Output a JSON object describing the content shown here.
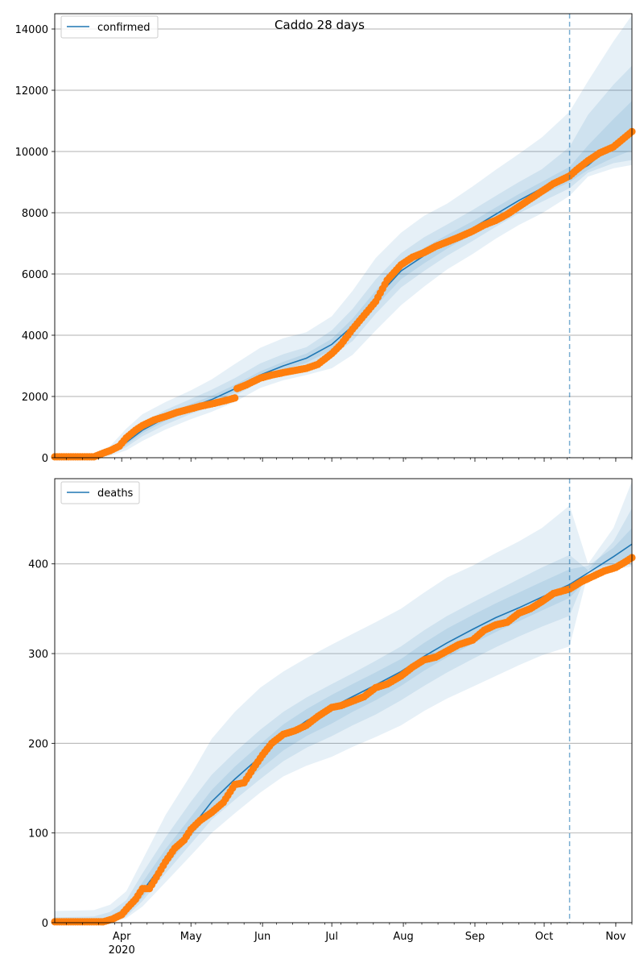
{
  "chart_data": [
    {
      "type": "line",
      "title": "Caddo 28 days",
      "legend": {
        "label": "confirmed",
        "placement": "top-left"
      },
      "grid": "horizontal",
      "ylim": [
        0,
        14500
      ],
      "yticks": [
        0,
        2000,
        4000,
        6000,
        8000,
        10000,
        12000,
        14000
      ],
      "xlim": [
        "2020-03-03",
        "2020-11-08"
      ],
      "forecast_start": "2020-10-12",
      "fit": {
        "x": [
          "2020-03-03",
          "2020-03-20",
          "2020-03-27",
          "2020-04-03",
          "2020-04-10",
          "2020-04-20",
          "2020-05-01",
          "2020-05-10",
          "2020-05-20",
          "2020-05-31",
          "2020-06-10",
          "2020-06-20",
          "2020-07-01",
          "2020-07-10",
          "2020-07-20",
          "2020-07-31",
          "2020-08-10",
          "2020-08-20",
          "2020-08-31",
          "2020-09-10",
          "2020-09-20",
          "2020-09-30",
          "2020-10-12",
          "2020-10-20",
          "2020-10-31",
          "2020-11-08"
        ],
        "y": [
          0,
          20,
          150,
          500,
          900,
          1300,
          1650,
          1900,
          2250,
          2700,
          3000,
          3250,
          3700,
          4300,
          5200,
          6100,
          6600,
          7050,
          7500,
          7950,
          8400,
          8800,
          9200,
          9550,
          10250,
          10750
        ]
      },
      "bands": [
        {
          "level": "outer",
          "lower": [
            0,
            0,
            60,
            240,
            550,
            920,
            1260,
            1500,
            1820,
            2280,
            2530,
            2700,
            2920,
            3360,
            4150,
            4980,
            5590,
            6150,
            6650,
            7150,
            7600,
            7980,
            8550,
            9180,
            9450,
            9560
          ],
          "upper": [
            0,
            150,
            380,
            950,
            1420,
            1820,
            2200,
            2560,
            3060,
            3590,
            3900,
            4100,
            4620,
            5450,
            6520,
            7350,
            7900,
            8300,
            8860,
            9400,
            9920,
            10460,
            11300,
            12300,
            13600,
            14450
          ]
        },
        {
          "level": "middle",
          "lower": [
            0,
            0,
            100,
            350,
            700,
            1080,
            1430,
            1680,
            2020,
            2480,
            2760,
            2960,
            3330,
            3810,
            4700,
            5560,
            6100,
            6600,
            7080,
            7540,
            7980,
            8360,
            8800,
            9310,
            9620,
            9720
          ],
          "upper": [
            0,
            80,
            250,
            700,
            1150,
            1560,
            1920,
            2220,
            2600,
            3080,
            3380,
            3610,
            4160,
            4860,
            5820,
            6680,
            7200,
            7620,
            8090,
            8550,
            9000,
            9420,
            10150,
            11200,
            12180,
            12800
          ]
        },
        {
          "level": "inner",
          "lower": [
            0,
            0,
            120,
            420,
            800,
            1200,
            1550,
            1790,
            2140,
            2590,
            2880,
            3100,
            3520,
            4060,
            4950,
            5830,
            6350,
            6830,
            7300,
            7750,
            8200,
            8580,
            9000,
            9400,
            9800,
            10040
          ],
          "upper": [
            0,
            40,
            190,
            600,
            1020,
            1420,
            1760,
            2020,
            2380,
            2820,
            3130,
            3400,
            3880,
            4540,
            5450,
            6370,
            6860,
            7280,
            7720,
            8170,
            8610,
            9010,
            9500,
            10200,
            11060,
            11650
          ]
        }
      ],
      "observed": {
        "x": [
          "2020-03-03",
          "2020-03-20",
          "2020-03-24",
          "2020-03-27",
          "2020-03-31",
          "2020-04-03",
          "2020-04-07",
          "2020-04-10",
          "2020-04-15",
          "2020-04-20",
          "2020-04-25",
          "2020-05-01",
          "2020-05-05",
          "2020-05-10",
          "2020-05-15",
          "2020-05-20",
          "2020-05-21",
          "2020-05-25",
          "2020-05-31",
          "2020-06-05",
          "2020-06-10",
          "2020-06-15",
          "2020-06-20",
          "2020-06-25",
          "2020-07-01",
          "2020-07-05",
          "2020-07-10",
          "2020-07-15",
          "2020-07-20",
          "2020-07-25",
          "2020-07-31",
          "2020-08-05",
          "2020-08-10",
          "2020-08-15",
          "2020-08-20",
          "2020-08-25",
          "2020-08-31",
          "2020-09-05",
          "2020-09-10",
          "2020-09-15",
          "2020-09-20",
          "2020-09-25",
          "2020-09-30",
          "2020-10-05",
          "2020-10-12",
          "2020-10-15",
          "2020-10-20",
          "2020-10-25",
          "2020-10-31",
          "2020-11-04",
          "2020-11-08"
        ],
        "y": [
          30,
          30,
          150,
          230,
          380,
          650,
          900,
          1050,
          1230,
          1350,
          1480,
          1600,
          1680,
          1760,
          1850,
          1950,
          2260,
          2380,
          2600,
          2700,
          2780,
          2850,
          2920,
          3050,
          3400,
          3700,
          4200,
          4650,
          5100,
          5800,
          6300,
          6550,
          6700,
          6900,
          7050,
          7200,
          7400,
          7600,
          7750,
          7950,
          8200,
          8450,
          8700,
          8950,
          9200,
          9400,
          9700,
          9950,
          10150,
          10400,
          10650
        ]
      }
    },
    {
      "type": "line",
      "legend": {
        "label": "deaths",
        "placement": "top-left"
      },
      "grid": "horizontal",
      "ylim": [
        0,
        495
      ],
      "yticks": [
        0,
        100,
        200,
        300,
        400
      ],
      "xlim": [
        "2020-03-03",
        "2020-11-08"
      ],
      "forecast_start": "2020-10-12",
      "xticks": [
        "Apr",
        "May",
        "Jun",
        "Jul",
        "Aug",
        "Sep",
        "Oct",
        "Nov"
      ],
      "xtick_sub": "2020",
      "fit": {
        "x": [
          "2020-03-03",
          "2020-03-20",
          "2020-03-27",
          "2020-04-03",
          "2020-04-10",
          "2020-04-20",
          "2020-05-01",
          "2020-05-10",
          "2020-05-20",
          "2020-05-31",
          "2020-06-10",
          "2020-06-20",
          "2020-07-01",
          "2020-07-10",
          "2020-07-20",
          "2020-07-31",
          "2020-08-10",
          "2020-08-20",
          "2020-08-31",
          "2020-09-10",
          "2020-09-20",
          "2020-09-30",
          "2020-10-12",
          "2020-10-20",
          "2020-10-31",
          "2020-11-08"
        ],
        "y": [
          0,
          0,
          3,
          12,
          35,
          70,
          105,
          135,
          160,
          185,
          207,
          225,
          240,
          252,
          265,
          280,
          297,
          312,
          327,
          340,
          351,
          363,
          377,
          390,
          408,
          422
        ]
      },
      "bands": [
        {
          "level": "outer",
          "lower": [
            0,
            0,
            0,
            5,
            18,
            45,
            75,
            100,
            122,
            145,
            163,
            175,
            185,
            196,
            207,
            220,
            236,
            250,
            263,
            275,
            287,
            298,
            308,
            390,
            394,
            397
          ],
          "upper": [
            13,
            14,
            20,
            35,
            70,
            120,
            165,
            205,
            235,
            262,
            280,
            295,
            310,
            322,
            335,
            350,
            368,
            385,
            398,
            412,
            425,
            440,
            465,
            400,
            440,
            492
          ]
        },
        {
          "level": "middle",
          "lower": [
            0,
            0,
            0,
            7,
            24,
            55,
            88,
            115,
            137,
            160,
            180,
            195,
            208,
            220,
            232,
            248,
            264,
            279,
            294,
            307,
            319,
            330,
            342,
            393,
            401,
            405
          ],
          "upper": [
            6,
            7,
            12,
            25,
            55,
            95,
            135,
            165,
            190,
            215,
            235,
            251,
            266,
            278,
            292,
            308,
            326,
            342,
            357,
            370,
            383,
            396,
            410,
            393,
            425,
            462
          ]
        },
        {
          "level": "inner",
          "lower": [
            0,
            0,
            1,
            9,
            28,
            62,
            96,
            124,
            148,
            171,
            192,
            208,
            222,
            235,
            248,
            264,
            281,
            296,
            311,
            324,
            336,
            348,
            362,
            384,
            399,
            408
          ],
          "upper": [
            3,
            3,
            7,
            18,
            45,
            82,
            118,
            148,
            174,
            199,
            221,
            238,
            254,
            266,
            279,
            294,
            312,
            328,
            343,
            356,
            368,
            380,
            394,
            398,
            418,
            440
          ]
        }
      ],
      "observed": {
        "x": [
          "2020-03-03",
          "2020-03-24",
          "2020-03-28",
          "2020-04-01",
          "2020-04-04",
          "2020-04-07",
          "2020-04-10",
          "2020-04-13",
          "2020-04-17",
          "2020-04-20",
          "2020-04-24",
          "2020-04-28",
          "2020-05-01",
          "2020-05-05",
          "2020-05-10",
          "2020-05-15",
          "2020-05-20",
          "2020-05-24",
          "2020-05-28",
          "2020-06-01",
          "2020-06-05",
          "2020-06-10",
          "2020-06-15",
          "2020-06-20",
          "2020-06-25",
          "2020-07-01",
          "2020-07-05",
          "2020-07-10",
          "2020-07-15",
          "2020-07-20",
          "2020-07-25",
          "2020-07-31",
          "2020-08-05",
          "2020-08-10",
          "2020-08-15",
          "2020-08-20",
          "2020-08-25",
          "2020-08-31",
          "2020-09-05",
          "2020-09-10",
          "2020-09-15",
          "2020-09-20",
          "2020-09-25",
          "2020-09-30",
          "2020-10-05",
          "2020-10-12",
          "2020-10-17",
          "2020-10-22",
          "2020-10-27",
          "2020-11-01",
          "2020-11-05",
          "2020-11-08"
        ],
        "y": [
          1,
          1,
          4,
          9,
          18,
          26,
          38,
          38,
          55,
          68,
          83,
          92,
          104,
          114,
          123,
          134,
          154,
          156,
          172,
          187,
          200,
          210,
          214,
          220,
          230,
          240,
          242,
          247,
          252,
          262,
          266,
          275,
          285,
          293,
          296,
          303,
          310,
          315,
          326,
          332,
          335,
          345,
          350,
          358,
          367,
          372,
          380,
          386,
          392,
          396,
          402,
          407
        ]
      }
    }
  ]
}
